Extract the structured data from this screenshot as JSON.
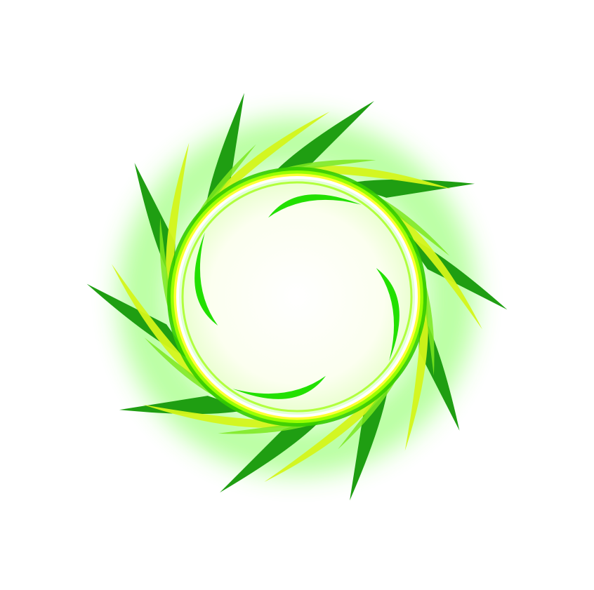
{
  "graphic": {
    "subject": "swirling-green-ring",
    "background_color": "#ffffff",
    "glow_color": "#66ff33",
    "inner_fill_color": "#fcfff0",
    "ring_colors": [
      "#ffffff",
      "#ffff33",
      "#99ff00",
      "#33cc00"
    ],
    "dark_spike_color": "#1f9e12",
    "yellow_blade_color": "#d4f51a",
    "lime_blade_color": "#7de81f",
    "bright_streak_color": "#22e000",
    "dark_spike_count": 10,
    "yellow_blade_count": 8,
    "inner_streak_count": 4
  }
}
